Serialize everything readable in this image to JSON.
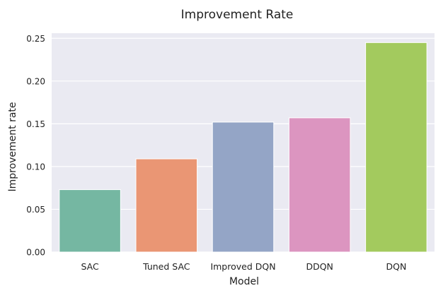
{
  "chart_data": {
    "type": "bar",
    "title": "Improvement Rate",
    "xlabel": "Model",
    "ylabel": "Improvement rate",
    "categories": [
      "SAC",
      "Tuned SAC",
      "Improved DQN",
      "DDQN",
      "DQN"
    ],
    "values": [
      0.073,
      0.109,
      0.152,
      0.157,
      0.245
    ],
    "ylim": [
      0,
      0.256
    ],
    "yticks": [
      0.0,
      0.05,
      0.1,
      0.15,
      0.2,
      0.25
    ],
    "ytick_labels": [
      "0.00",
      "0.05",
      "0.10",
      "0.15",
      "0.20",
      "0.25"
    ],
    "colors": [
      "#75b7a2",
      "#ea9674",
      "#94a5c6",
      "#dc95c0",
      "#a3ca5e"
    ],
    "grid": true,
    "background": "#eaeaf2"
  }
}
